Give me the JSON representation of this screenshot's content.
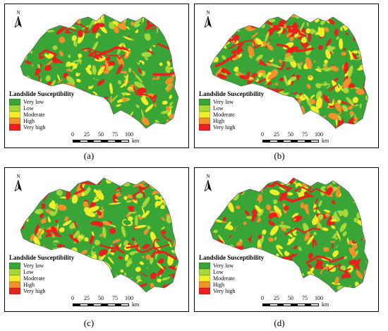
{
  "figure": {
    "panels": [
      {
        "caption": "(a)"
      },
      {
        "caption": "(b)"
      },
      {
        "caption": "(c)"
      },
      {
        "caption": "(d)"
      }
    ],
    "north_label": "N",
    "legend": {
      "title": "Landslide Susceptibility",
      "classes": [
        {
          "label": "Very low",
          "color": "#3aa537"
        },
        {
          "label": "Low",
          "color": "#a6d83a"
        },
        {
          "label": "Moderate",
          "color": "#f2ef2a"
        },
        {
          "label": "High",
          "color": "#f4912a"
        },
        {
          "label": "Very high",
          "color": "#e8211c"
        }
      ]
    },
    "scale_bar": {
      "ticks": [
        "0",
        "25",
        "50",
        "75",
        "100"
      ],
      "unit": "km"
    }
  }
}
